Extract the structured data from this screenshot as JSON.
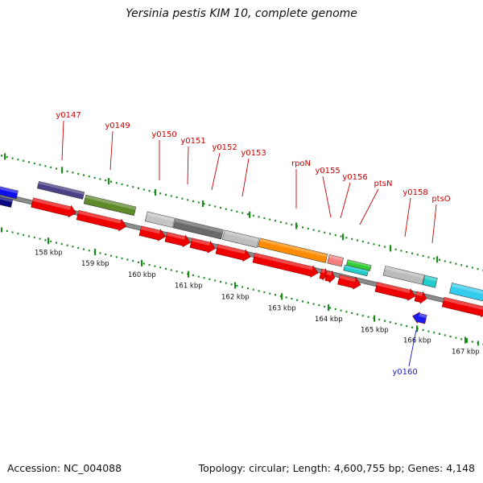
{
  "title": "Yersinia pestis KIM 10, complete genome",
  "footer": {
    "accession": "Accession: NC_004088",
    "summary": "Topology: circular; Length: 4,600,755 bp; Genes: 4,148"
  },
  "colors": {
    "backbone": "#8a8a8a",
    "tick": "#1a8a1a",
    "cds_forward": "#ee0000",
    "gene_label": "#cc0000",
    "gene_label_reverse": "#1a1acc",
    "cds_reverse": "#1a1aee"
  },
  "tick_labels": [
    "158 kbp",
    "159 kbp",
    "160 kbp",
    "161 kbp",
    "162 kbp",
    "163 kbp",
    "164 kbp",
    "165 kbp",
    "166 kbp",
    "167 kbp"
  ],
  "gene_labels": [
    {
      "text": "y0147",
      "strand": "forward"
    },
    {
      "text": "y0149",
      "strand": "forward"
    },
    {
      "text": "y0150",
      "strand": "forward"
    },
    {
      "text": "y0151",
      "strand": "forward"
    },
    {
      "text": "y0152",
      "strand": "forward"
    },
    {
      "text": "y0153",
      "strand": "forward"
    },
    {
      "text": "rpoN",
      "strand": "forward"
    },
    {
      "text": "y0155",
      "strand": "forward"
    },
    {
      "text": "y0156",
      "strand": "forward"
    },
    {
      "text": "ptsN",
      "strand": "forward"
    },
    {
      "text": "y0158",
      "strand": "forward"
    },
    {
      "text": "ptsO",
      "strand": "forward"
    },
    {
      "text": "y0160",
      "strand": "reverse"
    }
  ]
}
